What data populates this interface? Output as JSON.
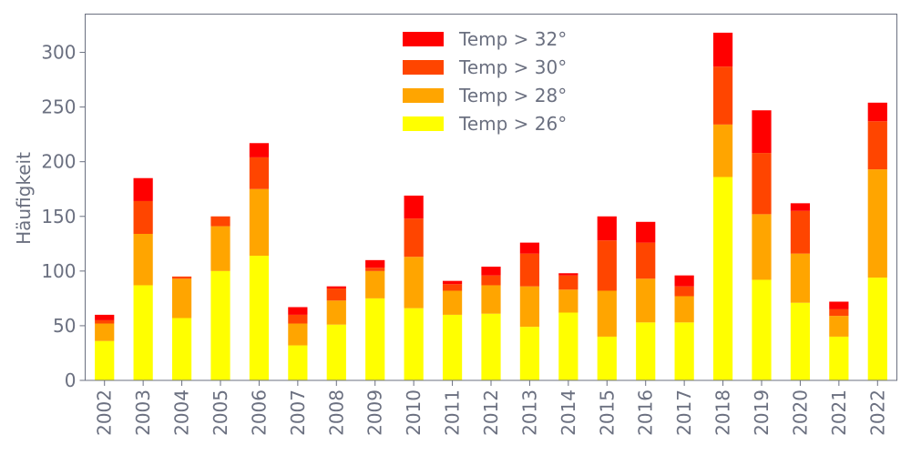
{
  "chart_data": {
    "type": "bar",
    "stacked": true,
    "title": "",
    "xlabel": "",
    "ylabel": "Häufigkeit",
    "ylim": [
      0,
      335
    ],
    "yticks": [
      0,
      50,
      100,
      150,
      200,
      250,
      300
    ],
    "grid": false,
    "legend_position": "top-center",
    "categories": [
      "2002",
      "2003",
      "2004",
      "2005",
      "2006",
      "2007",
      "2008",
      "2009",
      "2010",
      "2011",
      "2012",
      "2013",
      "2014",
      "2015",
      "2016",
      "2017",
      "2018",
      "2019",
      "2020",
      "2021",
      "2022"
    ],
    "series": [
      {
        "name": "Temp > 26°",
        "color": "#ffff00",
        "values": [
          36,
          87,
          57,
          100,
          114,
          32,
          51,
          75,
          66,
          60,
          61,
          49,
          62,
          40,
          53,
          53,
          186,
          92,
          71,
          40,
          94
        ]
      },
      {
        "name": "Temp > 28°",
        "color": "#ffa500",
        "values": [
          16,
          47,
          36,
          41,
          61,
          20,
          22,
          25,
          47,
          22,
          26,
          37,
          21,
          42,
          40,
          24,
          48,
          60,
          45,
          19,
          99
        ]
      },
      {
        "name": "Temp > 30°",
        "color": "#ff4500",
        "values": [
          3,
          30,
          2,
          9,
          29,
          8,
          11,
          3,
          35,
          6,
          9,
          30,
          13,
          46,
          33,
          9,
          53,
          56,
          39,
          6,
          44
        ]
      },
      {
        "name": "Temp > 32°",
        "color": "#ff0000",
        "values": [
          5,
          21,
          0,
          0,
          13,
          7,
          2,
          7,
          21,
          3,
          8,
          10,
          2,
          22,
          19,
          10,
          31,
          39,
          7,
          7,
          17
        ]
      }
    ],
    "axis_color": "#6b7080"
  }
}
